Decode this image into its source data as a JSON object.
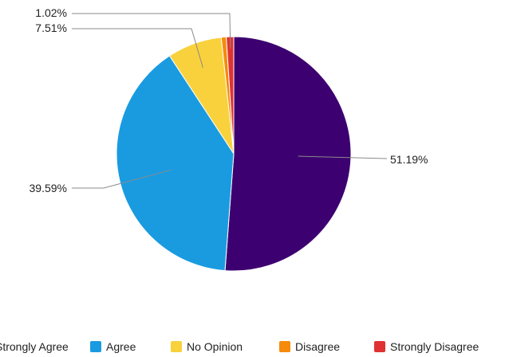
{
  "chart_data": {
    "type": "pie",
    "categories": [
      "Strongly Agree",
      "Agree",
      "No Opinion",
      "Disagree",
      "Strongly Disagree"
    ],
    "values": [
      51.19,
      39.59,
      7.51,
      0.69,
      1.02
    ],
    "data_labels": [
      "51.19%",
      "39.59%",
      "7.51%",
      "",
      "1.02%"
    ],
    "colors": [
      "#3d0070",
      "#1a9be0",
      "#f9d13d",
      "#f58a0b",
      "#e03232"
    ],
    "legend": {
      "position": "bottom",
      "entries": [
        {
          "label": "Strongly Agree",
          "color": "#3d0070"
        },
        {
          "label": "Agree",
          "color": "#1a9be0"
        },
        {
          "label": "No Opinion",
          "color": "#f9d13d"
        },
        {
          "label": "Disagree",
          "color": "#f58a0b"
        },
        {
          "label": "Strongly Disagree",
          "color": "#e03232"
        }
      ]
    },
    "title": ""
  }
}
